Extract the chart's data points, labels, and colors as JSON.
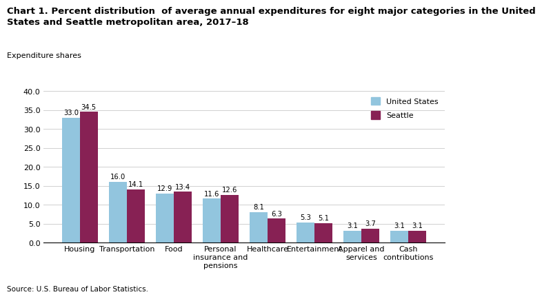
{
  "title_line1": "Chart 1. Percent distribution  of average annual expenditures for eight major categories in the United",
  "title_line2": "States and Seattle metropolitan area, 2017–18",
  "ylabel": "Expenditure shares",
  "source": "Source: U.S. Bureau of Labor Statistics.",
  "categories": [
    "Housing",
    "Transportation",
    "Food",
    "Personal\ninsurance and\npensions",
    "Healthcare",
    "Entertainment",
    "Apparel and\nservices",
    "Cash\ncontributions"
  ],
  "us_values": [
    33.0,
    16.0,
    12.9,
    11.6,
    8.1,
    5.3,
    3.1,
    3.1
  ],
  "seattle_values": [
    34.5,
    14.1,
    13.4,
    12.6,
    6.3,
    5.1,
    3.7,
    3.1
  ],
  "us_color": "#92C5DE",
  "seattle_color": "#872154",
  "ylim": [
    0,
    40
  ],
  "yticks": [
    0.0,
    5.0,
    10.0,
    15.0,
    20.0,
    25.0,
    30.0,
    35.0,
    40.0
  ],
  "legend_labels": [
    "United States",
    "Seattle"
  ],
  "bar_width": 0.38,
  "title_fontsize": 9.5,
  "label_fontsize": 8,
  "tick_fontsize": 8,
  "value_fontsize": 7.2,
  "source_fontsize": 7.5
}
